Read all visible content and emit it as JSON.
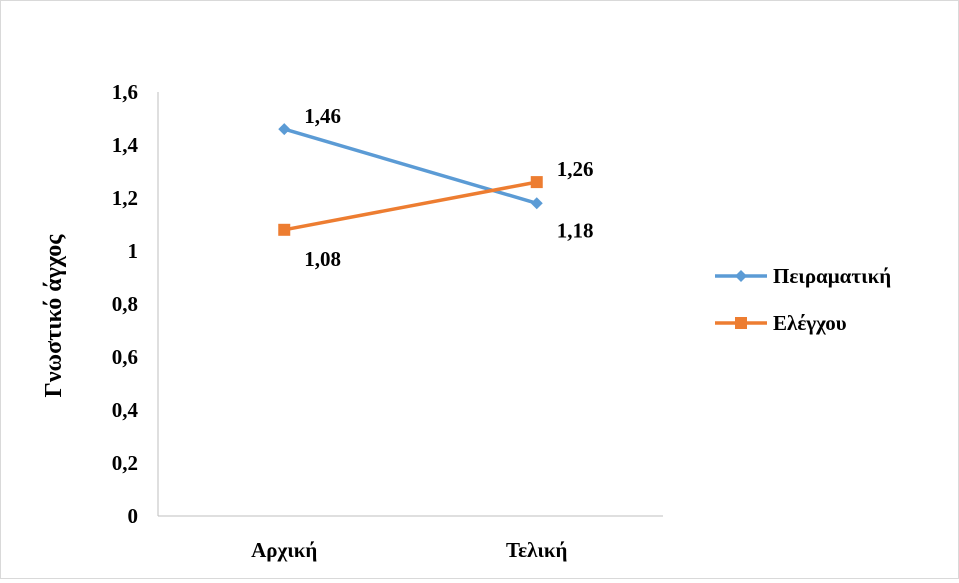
{
  "chart_data": {
    "type": "line",
    "title": "",
    "xlabel": "",
    "ylabel": "Γνωστικό άγχος",
    "categories": [
      "Αρχική",
      "Τελική"
    ],
    "series": [
      {
        "name": "Πειραματική",
        "values": [
          1.46,
          1.18
        ],
        "labels": [
          "1,46",
          "1,18"
        ],
        "color": "#5b9bd5",
        "marker": "diamond"
      },
      {
        "name": "Ελέγχου",
        "values": [
          1.08,
          1.26
        ],
        "labels": [
          "1,08",
          "1,26"
        ],
        "color": "#ed7d31",
        "marker": "square"
      }
    ],
    "ylim": [
      0,
      1.6
    ],
    "yticks": [
      0,
      0.2,
      0.4,
      0.6,
      0.8,
      1,
      1.2,
      1.4,
      1.6
    ],
    "ytick_labels": [
      "0",
      "0,2",
      "0,4",
      "0,6",
      "0,8",
      "1",
      "1,2",
      "1,4",
      "1,6"
    ],
    "grid": false,
    "legend_position": "right"
  }
}
